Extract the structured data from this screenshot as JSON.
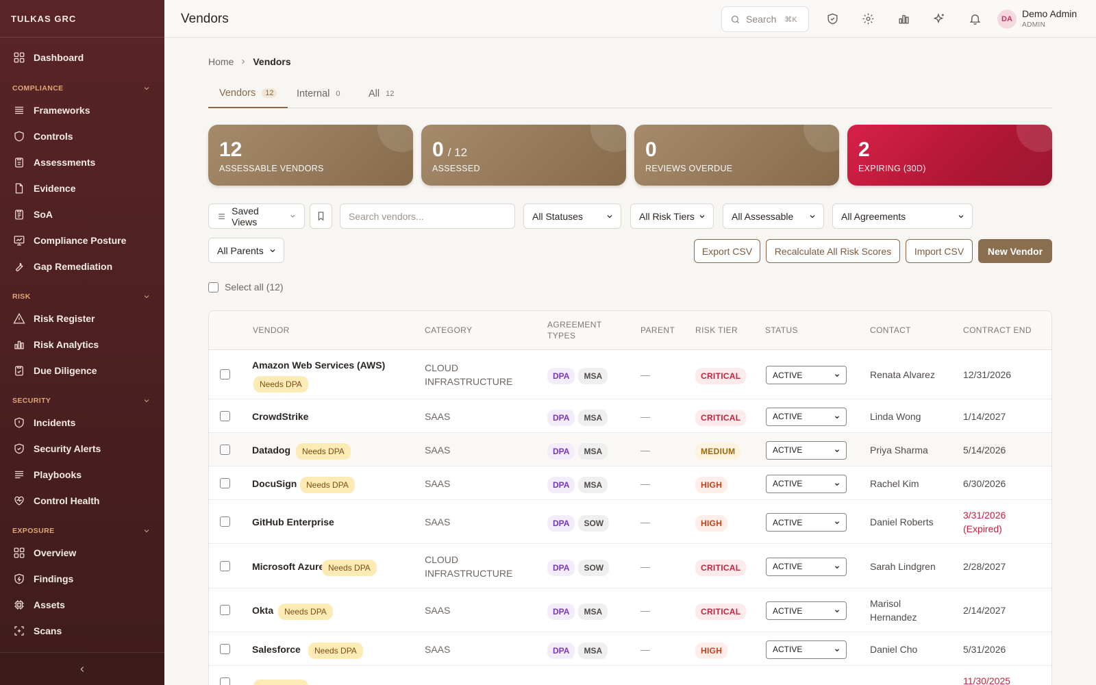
{
  "app": {
    "brand": "TULKAS GRC",
    "page_title": "Vendors"
  },
  "sidebar": {
    "dashboard": "Dashboard",
    "sections": [
      {
        "label": "COMPLIANCE",
        "items": [
          "Frameworks",
          "Controls",
          "Assessments",
          "Evidence",
          "SoA",
          "Compliance Posture",
          "Gap Remediation"
        ]
      },
      {
        "label": "RISK",
        "items": [
          "Risk Register",
          "Risk Analytics",
          "Due Diligence"
        ]
      },
      {
        "label": "SECURITY",
        "items": [
          "Incidents",
          "Security Alerts",
          "Playbooks",
          "Control Health"
        ]
      },
      {
        "label": "EXPOSURE",
        "items": [
          "Overview",
          "Findings",
          "Assets",
          "Scans"
        ]
      }
    ]
  },
  "topbar": {
    "search_label": "Search",
    "search_shortcut": "⌘K",
    "icons": [
      "shield-icon",
      "gear-icon",
      "bar-chart-icon",
      "sparkles-icon",
      "bell-icon"
    ],
    "user": {
      "initials": "DA",
      "name": "Demo Admin",
      "role": "ADMIN"
    }
  },
  "breadcrumb": {
    "home": "Home",
    "current": "Vendors"
  },
  "tabs": [
    {
      "label": "Vendors",
      "count": "12"
    },
    {
      "label": "Internal",
      "count": "0"
    },
    {
      "label": "All",
      "count": "12"
    }
  ],
  "stats": [
    {
      "value": "12",
      "sub": "",
      "label": "ASSESSABLE VENDORS"
    },
    {
      "value": "0",
      "sub": "/ 12",
      "label": "ASSESSED"
    },
    {
      "value": "0",
      "sub": "",
      "label": "REVIEWS OVERDUE"
    },
    {
      "value": "2",
      "sub": "",
      "label": "EXPIRING (30D)"
    }
  ],
  "filters": {
    "saved_views": "Saved Views",
    "search_placeholder": "Search vendors...",
    "statuses": "All Statuses",
    "risk_tiers": "All Risk Tiers",
    "assessable": "All Assessable",
    "agreements": "All Agreements",
    "parents": "All Parents"
  },
  "actions": {
    "export": "Export CSV",
    "recalc": "Recalculate All Risk Scores",
    "import": "Import CSV",
    "new": "New Vendor"
  },
  "select_all": "Select all (12)",
  "table": {
    "headers": {
      "vendor": "VENDOR",
      "category": "CATEGORY",
      "agreement_1": "AGREEMENT",
      "agreement_2": "TYPES",
      "parent": "PARENT",
      "risk_tier": "RISK TIER",
      "status": "STATUS",
      "contact": "CONTACT",
      "contract_end": "CONTRACT END"
    },
    "needs_dpa": "Needs DPA",
    "rows": [
      {
        "vendor": "Amazon Web Services (AWS)",
        "category_1": "CLOUD",
        "category_2": "INFRASTRUCTURE",
        "agreements": [
          "DPA",
          "MSA"
        ],
        "parent": "—",
        "tier": "CRITICAL",
        "status": "ACTIVE",
        "contact_1": "Renata Alvarez",
        "contact_2": "",
        "end_1": "12/31/2026",
        "end_2": ""
      },
      {
        "vendor": "CrowdStrike",
        "category_1": "SAAS",
        "category_2": "",
        "agreements": [
          "DPA",
          "MSA"
        ],
        "parent": "—",
        "tier": "CRITICAL",
        "status": "ACTIVE",
        "contact_1": "Linda Wong",
        "contact_2": "",
        "end_1": "1/14/2027",
        "end_2": ""
      },
      {
        "vendor": "Datadog",
        "category_1": "SAAS",
        "category_2": "",
        "agreements": [
          "DPA",
          "MSA"
        ],
        "parent": "—",
        "tier": "MEDIUM",
        "status": "ACTIVE",
        "contact_1": "Priya Sharma",
        "contact_2": "",
        "end_1": "5/14/2026",
        "end_2": ""
      },
      {
        "vendor": "DocuSign",
        "category_1": "SAAS",
        "category_2": "",
        "agreements": [
          "DPA",
          "MSA"
        ],
        "parent": "—",
        "tier": "HIGH",
        "status": "ACTIVE",
        "contact_1": "Rachel Kim",
        "contact_2": "",
        "end_1": "6/30/2026",
        "end_2": ""
      },
      {
        "vendor": "GitHub Enterprise",
        "category_1": "SAAS",
        "category_2": "",
        "agreements": [
          "DPA",
          "SOW"
        ],
        "parent": "—",
        "tier": "HIGH",
        "status": "ACTIVE",
        "contact_1": "Daniel Roberts",
        "contact_2": "",
        "end_1": "3/31/2026",
        "end_2": "(Expired)"
      },
      {
        "vendor": "Microsoft Azure",
        "category_1": "CLOUD",
        "category_2": "INFRASTRUCTURE",
        "agreements": [
          "DPA",
          "SOW"
        ],
        "parent": "—",
        "tier": "CRITICAL",
        "status": "ACTIVE",
        "contact_1": "Sarah Lindgren",
        "contact_2": "",
        "end_1": "2/28/2027",
        "end_2": ""
      },
      {
        "vendor": "Okta",
        "category_1": "SAAS",
        "category_2": "",
        "agreements": [
          "DPA",
          "MSA"
        ],
        "parent": "—",
        "tier": "CRITICAL",
        "status": "ACTIVE",
        "contact_1": "Marisol",
        "contact_2": "Hernandez",
        "end_1": "2/14/2027",
        "end_2": ""
      },
      {
        "vendor": "Salesforce",
        "category_1": "SAAS",
        "category_2": "",
        "agreements": [
          "DPA",
          "MSA"
        ],
        "parent": "—",
        "tier": "HIGH",
        "status": "ACTIVE",
        "contact_1": "Daniel Cho",
        "contact_2": "",
        "end_1": "5/31/2026",
        "end_2": ""
      },
      {
        "vendor": "",
        "category_1": "",
        "category_2": "",
        "agreements": [],
        "parent": "",
        "tier": "",
        "status": "",
        "contact_1": "",
        "contact_2": "",
        "end_1": "11/30/2025",
        "end_2": ""
      }
    ]
  }
}
